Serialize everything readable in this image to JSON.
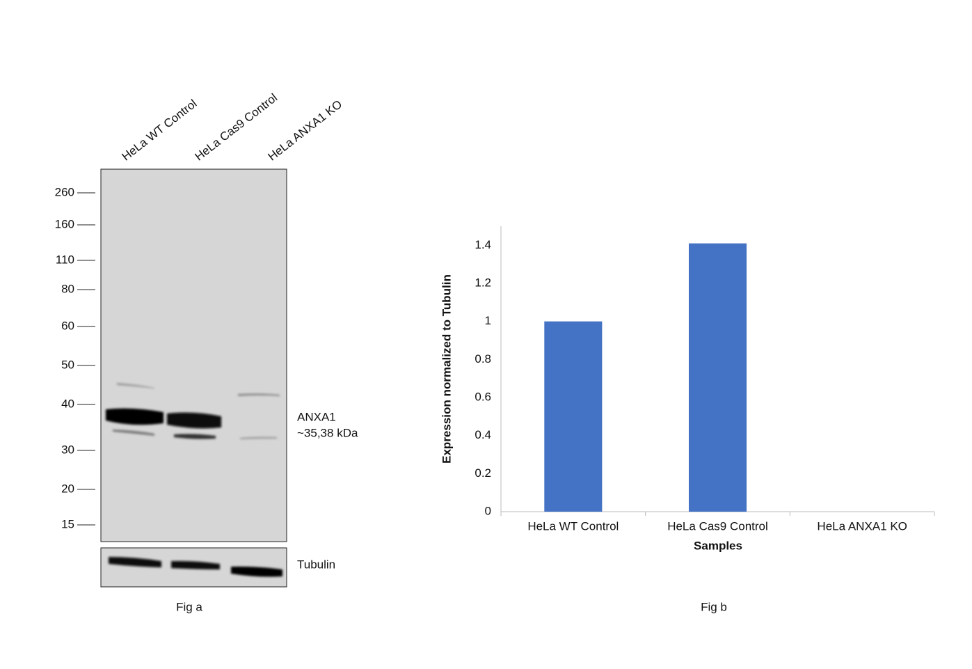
{
  "blot": {
    "lanes": [
      "HeLa WT Control",
      "HeLa Cas9 Control",
      "HeLa ANXA1 KO"
    ],
    "markers": [
      260,
      160,
      110,
      80,
      60,
      50,
      40,
      30,
      20,
      15
    ],
    "band_label": "ANXA1",
    "band_size": "~35,38 kDa",
    "loading_label": "Tubulin",
    "caption": "Fig a"
  },
  "chart_data": {
    "type": "bar",
    "categories": [
      "HeLa WT Control",
      "HeLa Cas9 Control",
      "HeLa ANXA1 KO"
    ],
    "values": [
      1,
      1.41,
      0
    ],
    "color": "#4472c4",
    "ylim": [
      0,
      1.5
    ],
    "yticks": [
      0,
      0.2,
      0.4,
      0.6,
      0.8,
      1,
      1.2,
      1.4
    ],
    "y_label": "Expression normalized to Tubulin",
    "x_label": "Samples",
    "caption": "Fig b"
  }
}
